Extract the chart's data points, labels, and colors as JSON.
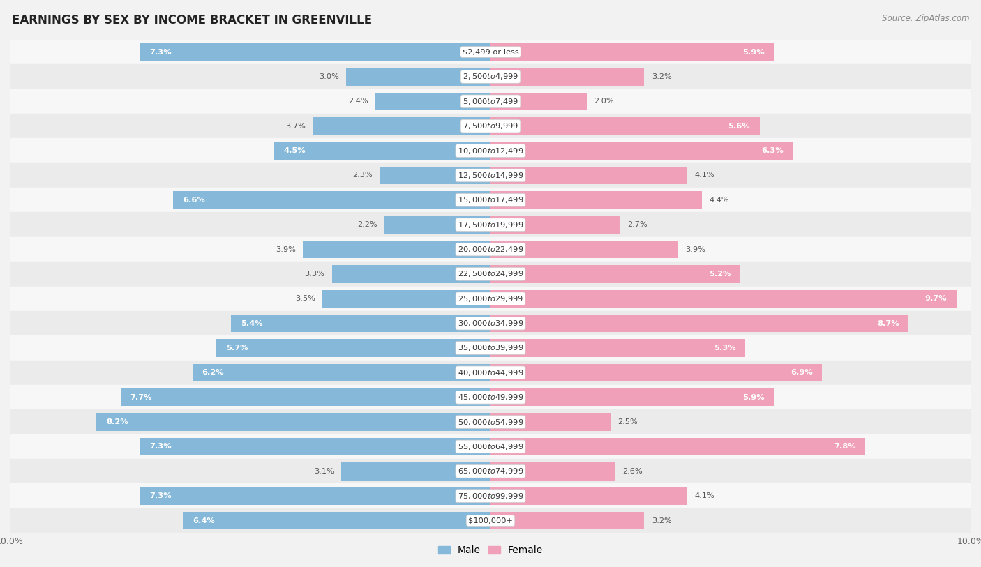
{
  "title": "EARNINGS BY SEX BY INCOME BRACKET IN GREENVILLE",
  "source": "Source: ZipAtlas.com",
  "categories": [
    "$2,499 or less",
    "$2,500 to $4,999",
    "$5,000 to $7,499",
    "$7,500 to $9,999",
    "$10,000 to $12,499",
    "$12,500 to $14,999",
    "$15,000 to $17,499",
    "$17,500 to $19,999",
    "$20,000 to $22,499",
    "$22,500 to $24,999",
    "$25,000 to $29,999",
    "$30,000 to $34,999",
    "$35,000 to $39,999",
    "$40,000 to $44,999",
    "$45,000 to $49,999",
    "$50,000 to $54,999",
    "$55,000 to $64,999",
    "$65,000 to $74,999",
    "$75,000 to $99,999",
    "$100,000+"
  ],
  "male_values": [
    7.3,
    3.0,
    2.4,
    3.7,
    4.5,
    2.3,
    6.6,
    2.2,
    3.9,
    3.3,
    3.5,
    5.4,
    5.7,
    6.2,
    7.7,
    8.2,
    7.3,
    3.1,
    7.3,
    6.4
  ],
  "female_values": [
    5.9,
    3.2,
    2.0,
    5.6,
    6.3,
    4.1,
    4.4,
    2.7,
    3.9,
    5.2,
    9.7,
    8.7,
    5.3,
    6.9,
    5.9,
    2.5,
    7.8,
    2.6,
    4.1,
    3.2
  ],
  "male_color": "#85b8d9",
  "female_color": "#f0a0b8",
  "axis_limit": 10.0,
  "row_colors": [
    "#f7f7f7",
    "#ebebeb"
  ],
  "title_fontsize": 12,
  "bar_height": 0.72,
  "label_threshold": 4.5
}
